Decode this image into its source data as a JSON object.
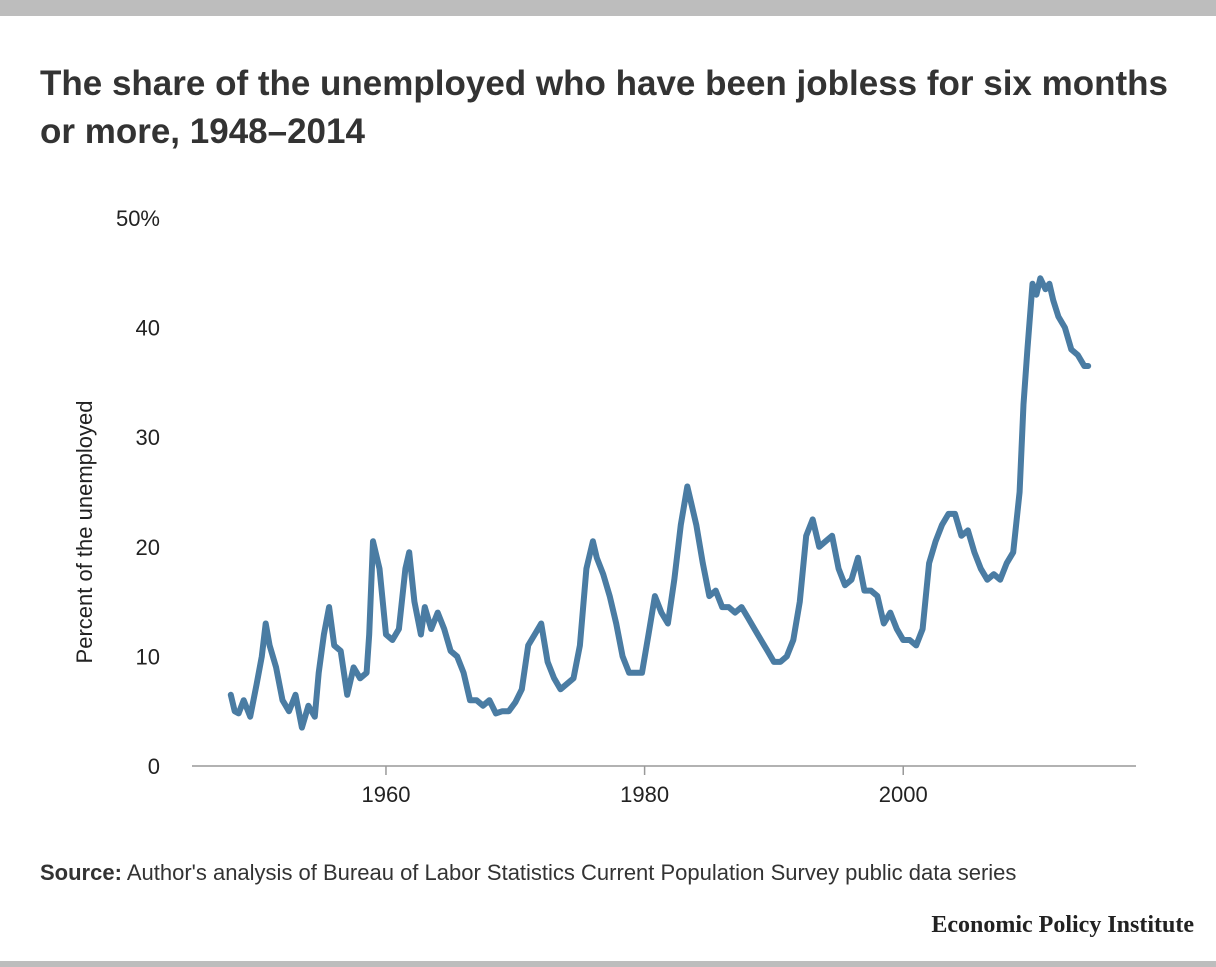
{
  "title": "The share of the unemployed who have been jobless for six months or more, 1948–2014",
  "source": {
    "label": "Source:",
    "text": "Author's analysis of Bureau of Labor Statistics Current Population Survey public data series"
  },
  "publisher": "Economic Policy Institute",
  "colors": {
    "line": "#4a7ca3",
    "axis": "#999999",
    "text": "#333333",
    "bars": "#bdbdbd"
  },
  "chart_data": {
    "type": "line",
    "title": "The share of the unemployed who have been jobless for six months or more, 1948–2014",
    "xlabel": "",
    "ylabel": "Percent of the unemployed",
    "xlim": [
      1945,
      2018
    ],
    "ylim": [
      0,
      50
    ],
    "x_ticks": [
      1960,
      1980,
      2000
    ],
    "y_ticks": [
      {
        "value": 0,
        "label": "0"
      },
      {
        "value": 10,
        "label": "10"
      },
      {
        "value": 20,
        "label": "20"
      },
      {
        "value": 30,
        "label": "30"
      },
      {
        "value": 40,
        "label": "40"
      },
      {
        "value": 50,
        "label": "50%"
      }
    ],
    "grid": false,
    "legend": "none",
    "series": [
      {
        "x": [
          1948.0,
          1948.3,
          1948.6,
          1949.0,
          1949.5,
          1950.0,
          1950.4,
          1950.7,
          1951.0,
          1951.5,
          1952.0,
          1952.5,
          1953.0,
          1953.5,
          1954.0,
          1954.5,
          1954.8,
          1955.2,
          1955.6,
          1956.0,
          1956.5,
          1957.0,
          1957.5,
          1958.0,
          1958.5,
          1958.7,
          1959.0,
          1959.5,
          1960.0,
          1960.5,
          1961.0,
          1961.5,
          1961.8,
          1962.2,
          1962.7,
          1963.0,
          1963.5,
          1964.0,
          1964.5,
          1965.0,
          1965.5,
          1966.0,
          1966.5,
          1967.0,
          1967.5,
          1968.0,
          1968.5,
          1969.0,
          1969.5,
          1970.0,
          1970.5,
          1971.0,
          1971.5,
          1972.0,
          1972.5,
          1973.0,
          1973.5,
          1974.0,
          1974.5,
          1975.0,
          1975.5,
          1976.0,
          1976.3,
          1976.8,
          1977.3,
          1977.8,
          1978.3,
          1978.8,
          1979.3,
          1979.8,
          1980.3,
          1980.8,
          1981.3,
          1981.8,
          1982.3,
          1982.8,
          1983.3,
          1983.6,
          1984.0,
          1984.5,
          1985.0,
          1985.5,
          1986.0,
          1986.5,
          1987.0,
          1987.5,
          1988.0,
          1988.5,
          1989.0,
          1989.5,
          1990.0,
          1990.5,
          1991.0,
          1991.5,
          1992.0,
          1992.5,
          1993.0,
          1993.5,
          1994.0,
          1994.5,
          1995.0,
          1995.5,
          1996.0,
          1996.5,
          1997.0,
          1997.5,
          1998.0,
          1998.5,
          1999.0,
          1999.5,
          2000.0,
          2000.5,
          2001.0,
          2001.5,
          2002.0,
          2002.5,
          2003.0,
          2003.5,
          2004.0,
          2004.5,
          2005.0,
          2005.5,
          2006.0,
          2006.5,
          2007.0,
          2007.5,
          2008.0,
          2008.5,
          2009.0,
          2009.3,
          2009.6,
          2010.0,
          2010.3,
          2010.6,
          2011.0,
          2011.3,
          2011.6,
          2012.0,
          2012.5,
          2013.0,
          2013.5,
          2014.0,
          2014.3
        ],
        "y": [
          6.5,
          5.0,
          4.8,
          6.0,
          4.5,
          7.5,
          10.0,
          13.0,
          11.0,
          9.0,
          6.0,
          5.0,
          6.5,
          3.5,
          5.5,
          4.5,
          8.5,
          12.0,
          14.5,
          11.0,
          10.5,
          6.5,
          9.0,
          8.0,
          8.5,
          12.0,
          20.5,
          18.0,
          12.0,
          11.5,
          12.5,
          18.0,
          19.5,
          15.0,
          12.0,
          14.5,
          12.5,
          14.0,
          12.5,
          10.5,
          10.0,
          8.5,
          6.0,
          6.0,
          5.5,
          6.0,
          4.8,
          5.0,
          5.0,
          5.8,
          7.0,
          11.0,
          12.0,
          13.0,
          9.5,
          8.0,
          7.0,
          7.5,
          8.0,
          11.0,
          18.0,
          20.5,
          19.0,
          17.5,
          15.5,
          13.0,
          10.0,
          8.5,
          8.5,
          8.5,
          12.0,
          15.5,
          14.0,
          13.0,
          17.0,
          22.0,
          25.5,
          24.0,
          22.0,
          18.5,
          15.5,
          16.0,
          14.5,
          14.5,
          14.0,
          14.5,
          13.5,
          12.5,
          11.5,
          10.5,
          9.5,
          9.5,
          10.0,
          11.5,
          15.0,
          21.0,
          22.5,
          20.0,
          20.5,
          21.0,
          18.0,
          16.5,
          17.0,
          19.0,
          16.0,
          16.0,
          15.5,
          13.0,
          14.0,
          12.5,
          11.5,
          11.5,
          11.0,
          12.5,
          18.5,
          20.5,
          22.0,
          23.0,
          23.0,
          21.0,
          21.5,
          19.5,
          18.0,
          17.0,
          17.5,
          17.0,
          18.5,
          19.5,
          25.0,
          33.0,
          38.0,
          44.0,
          43.0,
          44.5,
          43.5,
          44.0,
          42.5,
          41.0,
          40.0,
          38.0,
          37.5,
          36.5,
          36.5
        ]
      }
    ]
  }
}
